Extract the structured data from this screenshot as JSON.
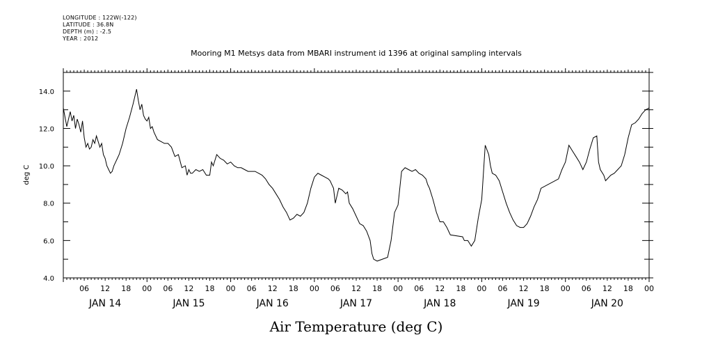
{
  "header": {
    "longitude": "LONGITUDE : 122W(-122)",
    "latitude": "LATITUDE : 36.8N",
    "depth": "DEPTH (m) : -2.5",
    "year": "YEAR : 2012"
  },
  "chart_data": {
    "type": "line",
    "title": "Mooring M1 Metsys data from MBARI instrument id 1396 at original sampling intervals",
    "xlabel": "Air Temperature (deg C)",
    "ylabel": "deg C",
    "ylim": [
      4.0,
      15.0
    ],
    "xlim_hours": [
      0,
      168
    ],
    "yticks": [
      "4.0",
      "6.0",
      "8.0",
      "10.0",
      "12.0",
      "14.0"
    ],
    "hour_ticks": [
      {
        "h": 6,
        "label": "06"
      },
      {
        "h": 12,
        "label": "12"
      },
      {
        "h": 18,
        "label": "18"
      },
      {
        "h": 24,
        "label": "00"
      },
      {
        "h": 30,
        "label": "06"
      },
      {
        "h": 36,
        "label": "12"
      },
      {
        "h": 42,
        "label": "18"
      },
      {
        "h": 48,
        "label": "00"
      },
      {
        "h": 54,
        "label": "06"
      },
      {
        "h": 60,
        "label": "12"
      },
      {
        "h": 66,
        "label": "18"
      },
      {
        "h": 72,
        "label": "00"
      },
      {
        "h": 78,
        "label": "06"
      },
      {
        "h": 84,
        "label": "12"
      },
      {
        "h": 90,
        "label": "18"
      },
      {
        "h": 96,
        "label": "00"
      },
      {
        "h": 102,
        "label": "06"
      },
      {
        "h": 108,
        "label": "12"
      },
      {
        "h": 114,
        "label": "18"
      },
      {
        "h": 120,
        "label": "00"
      },
      {
        "h": 126,
        "label": "06"
      },
      {
        "h": 132,
        "label": "12"
      },
      {
        "h": 138,
        "label": "18"
      },
      {
        "h": 144,
        "label": "00"
      },
      {
        "h": 150,
        "label": "06"
      },
      {
        "h": 156,
        "label": "12"
      },
      {
        "h": 162,
        "label": "18"
      },
      {
        "h": 168,
        "label": "00"
      }
    ],
    "day_labels": [
      {
        "h": 12,
        "label": "JAN 14"
      },
      {
        "h": 36,
        "label": "JAN 15"
      },
      {
        "h": 60,
        "label": "JAN 16"
      },
      {
        "h": 84,
        "label": "JAN 17"
      },
      {
        "h": 108,
        "label": "JAN 18"
      },
      {
        "h": 132,
        "label": "JAN 19"
      },
      {
        "h": 156,
        "label": "JAN 20"
      }
    ],
    "series": [
      {
        "x": [
          0,
          0.5,
          1,
          1.5,
          2,
          2.5,
          3,
          3.5,
          4,
          4.5,
          5,
          5.5,
          6,
          6.5,
          7,
          7.5,
          8,
          8.5,
          9,
          9.5,
          10,
          10.5,
          11,
          11.5,
          12,
          12.5,
          13,
          13.5,
          14,
          14.5,
          15,
          15.5,
          16,
          17,
          18,
          19,
          20,
          21,
          21.5,
          22,
          22.5,
          23,
          23.5,
          24,
          24.5,
          25,
          25.5,
          26,
          27,
          28,
          29,
          30,
          31,
          32,
          33,
          34,
          35,
          35.5,
          36,
          36.5,
          37,
          38,
          39,
          40,
          41,
          42,
          42.5,
          43,
          44,
          44.5,
          45,
          46,
          47,
          48,
          49,
          50,
          51,
          52,
          53,
          54,
          55,
          56,
          57,
          58,
          59,
          60,
          61,
          62,
          63,
          64,
          65,
          66,
          67,
          68,
          69,
          70,
          71,
          72,
          72.5,
          73,
          74,
          75,
          76,
          76.5,
          77,
          77.5,
          78,
          79,
          80,
          81,
          81.5,
          82,
          83,
          84,
          85,
          86,
          87,
          88,
          88.5,
          89,
          90,
          93,
          94,
          95,
          96,
          97,
          98,
          99,
          100,
          101,
          102,
          103,
          104,
          104.5,
          105,
          106,
          107,
          108,
          109,
          110,
          110.5,
          111,
          114.5,
          115,
          116,
          117,
          118,
          119,
          120,
          121,
          122,
          122.5,
          123,
          124,
          125,
          126,
          127,
          128,
          129,
          130,
          131,
          132,
          133,
          134,
          135,
          136,
          137,
          142,
          143,
          143.5,
          144,
          145,
          146,
          147,
          148,
          149,
          150,
          151,
          152,
          153,
          153.5,
          154,
          155,
          155.5,
          156,
          157,
          158,
          159,
          160,
          161,
          162,
          163,
          164,
          165,
          166,
          166.5,
          167,
          168
        ],
        "y": [
          13.1,
          12.6,
          12.1,
          12.5,
          12.9,
          12.4,
          12.7,
          12.0,
          12.5,
          12.2,
          11.8,
          12.4,
          11.5,
          11.0,
          11.2,
          10.9,
          11.0,
          11.4,
          11.2,
          11.6,
          11.3,
          11.0,
          11.2,
          10.6,
          10.4,
          10.0,
          9.8,
          9.6,
          9.7,
          10.0,
          10.2,
          10.4,
          10.6,
          11.2,
          12.0,
          12.6,
          13.3,
          14.1,
          13.5,
          13.0,
          13.3,
          12.7,
          12.5,
          12.4,
          12.6,
          12.0,
          12.1,
          11.8,
          11.4,
          11.3,
          11.2,
          11.2,
          11.0,
          10.5,
          10.6,
          9.9,
          10.0,
          9.5,
          9.8,
          9.6,
          9.6,
          9.8,
          9.7,
          9.8,
          9.5,
          9.5,
          10.2,
          10.0,
          10.6,
          10.5,
          10.4,
          10.3,
          10.1,
          10.2,
          10.0,
          9.9,
          9.9,
          9.8,
          9.7,
          9.7,
          9.7,
          9.6,
          9.5,
          9.3,
          9.0,
          8.8,
          8.5,
          8.2,
          7.8,
          7.5,
          7.1,
          7.2,
          7.4,
          7.3,
          7.5,
          8.0,
          8.8,
          9.4,
          9.5,
          9.6,
          9.5,
          9.4,
          9.3,
          9.2,
          9.0,
          8.8,
          8.0,
          8.8,
          8.7,
          8.5,
          8.6,
          8.0,
          7.7,
          7.3,
          6.9,
          6.8,
          6.5,
          6.0,
          5.3,
          5.0,
          4.9,
          5.1,
          6.0,
          7.5,
          7.9,
          9.7,
          9.9,
          9.8,
          9.7,
          9.8,
          9.6,
          9.5,
          9.3,
          9.0,
          8.8,
          8.2,
          7.5,
          7.0,
          7.0,
          6.7,
          6.5,
          6.3,
          6.2,
          6.0,
          6.0,
          5.7,
          6.0,
          7.2,
          8.2,
          11.1,
          10.6,
          10.0,
          9.6,
          9.5,
          9.2,
          8.6,
          8.0,
          7.5,
          7.1,
          6.8,
          6.7,
          6.7,
          6.9,
          7.3,
          7.8,
          8.2,
          8.8,
          9.3,
          9.8,
          10.0,
          10.2,
          11.1,
          10.8,
          10.5,
          10.2,
          9.8,
          10.2,
          10.9,
          11.5,
          11.6,
          10.2,
          9.8,
          9.5,
          9.2,
          9.3,
          9.5,
          9.6,
          9.8,
          10.0,
          10.6,
          11.5,
          12.2,
          12.3,
          12.5,
          12.8,
          12.9,
          13.0,
          13.1
        ]
      }
    ]
  }
}
